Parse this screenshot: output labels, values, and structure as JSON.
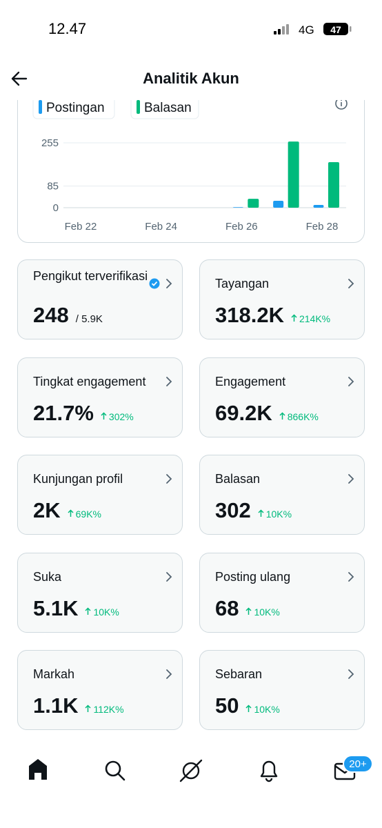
{
  "status_bar": {
    "time": "12.47",
    "network": "4G",
    "battery": "47"
  },
  "header": {
    "title": "Analitik Akun"
  },
  "chart_data": {
    "type": "bar",
    "categories": [
      "Feb 22",
      null,
      "Feb 24",
      null,
      "Feb 26",
      null,
      "Feb 28"
    ],
    "series": [
      {
        "name": "Postingan",
        "color": "#1d9bf0",
        "values": [
          0,
          0,
          0,
          0,
          2,
          27,
          11
        ]
      },
      {
        "name": "Balasan",
        "color": "#00ba7c",
        "values": [
          0,
          0,
          0,
          0,
          35,
          260,
          179
        ]
      }
    ],
    "ylim": [
      0,
      260
    ],
    "yticks": [
      0,
      85,
      255
    ],
    "grid": true
  },
  "metrics": [
    {
      "label": "Pengikut terverifikasi",
      "value": "248",
      "total": "/ 5.9K",
      "verified": true
    },
    {
      "label": "Tayangan",
      "value": "318.2K",
      "change": "214K%"
    },
    {
      "label": "Tingkat engagement",
      "value": "21.7%",
      "change": "302%"
    },
    {
      "label": "Engagement",
      "value": "69.2K",
      "change": "866K%"
    },
    {
      "label": "Kunjungan profil",
      "value": "2K",
      "change": "69K%"
    },
    {
      "label": "Balasan",
      "value": "302",
      "change": "10K%"
    },
    {
      "label": "Suka",
      "value": "5.1K",
      "change": "10K%"
    },
    {
      "label": "Posting ulang",
      "value": "68",
      "change": "10K%"
    },
    {
      "label": "Markah",
      "value": "1.1K",
      "change": "112K%"
    },
    {
      "label": "Sebaran",
      "value": "50",
      "change": "10K%"
    }
  ],
  "nav": {
    "badge": "20+"
  }
}
